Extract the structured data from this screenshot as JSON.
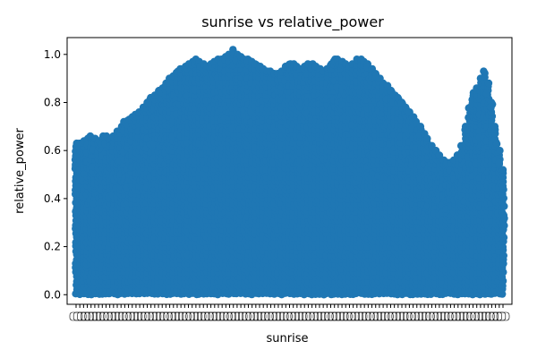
{
  "chart_data": {
    "type": "scatter",
    "title": "sunrise vs relative_power",
    "xlabel": "sunrise",
    "ylabel": "relative_power",
    "ylim": [
      -0.04,
      1.07
    ],
    "yticks": [
      0.0,
      0.2,
      0.4,
      0.6,
      0.8,
      1.0
    ],
    "ytick_labels": [
      "0.0",
      "0.2",
      "0.4",
      "0.6",
      "0.8",
      "1.0"
    ],
    "grid": false,
    "legend": "none",
    "marker_color": "#1f77b4",
    "x_category_count": 115,
    "x_tick_labels_overlapping": true,
    "envelope_max_relative_power": [
      0.63,
      0.63,
      0.64,
      0.65,
      0.66,
      0.65,
      0.64,
      0.66,
      0.66,
      0.64,
      0.66,
      0.68,
      0.7,
      0.72,
      0.73,
      0.74,
      0.75,
      0.76,
      0.78,
      0.8,
      0.82,
      0.83,
      0.85,
      0.86,
      0.88,
      0.9,
      0.91,
      0.93,
      0.94,
      0.95,
      0.96,
      0.97,
      0.98,
      0.97,
      0.96,
      0.95,
      0.96,
      0.97,
      0.98,
      0.98,
      0.99,
      1.0,
      1.02,
      1.0,
      0.99,
      0.98,
      0.98,
      0.97,
      0.96,
      0.95,
      0.94,
      0.93,
      0.93,
      0.92,
      0.92,
      0.93,
      0.95,
      0.96,
      0.96,
      0.95,
      0.94,
      0.95,
      0.96,
      0.96,
      0.95,
      0.94,
      0.93,
      0.94,
      0.96,
      0.98,
      0.98,
      0.97,
      0.96,
      0.95,
      0.96,
      0.98,
      0.98,
      0.97,
      0.96,
      0.94,
      0.92,
      0.9,
      0.88,
      0.87,
      0.85,
      0.83,
      0.82,
      0.8,
      0.78,
      0.76,
      0.74,
      0.72,
      0.7,
      0.67,
      0.65,
      0.62,
      0.6,
      0.58,
      0.56,
      0.55,
      0.55,
      0.56,
      0.58,
      0.62,
      0.7,
      0.78,
      0.84,
      0.86,
      0.9,
      0.93,
      0.88,
      0.8,
      0.7,
      0.6,
      0.52
    ]
  }
}
